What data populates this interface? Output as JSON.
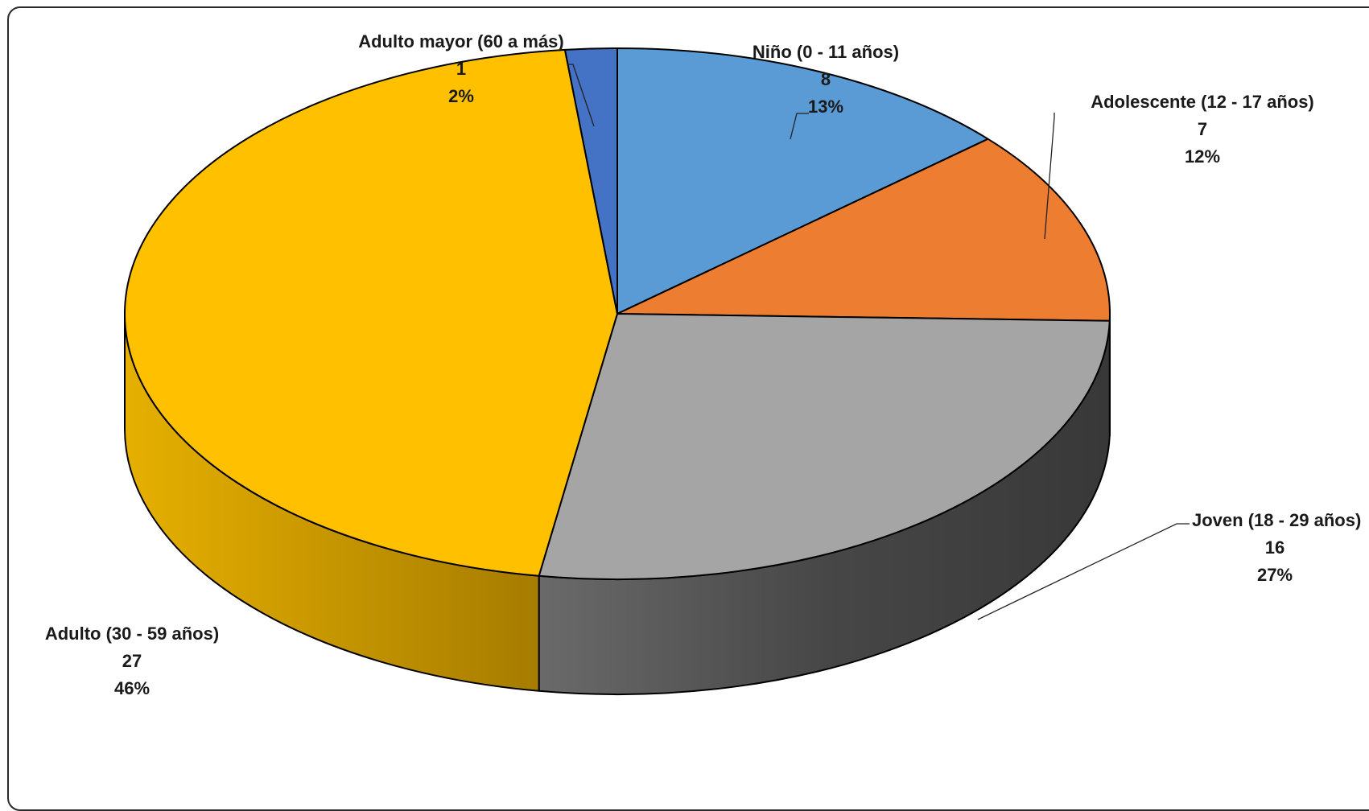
{
  "chart_data": {
    "type": "pie",
    "style": "3d",
    "title": "",
    "series": [
      {
        "name": "Niño (0 - 11 años)",
        "value": 8,
        "percent": "13%",
        "color": "#5B9BD5",
        "side_dark": "#3a6a9a"
      },
      {
        "name": "Adolescente (12 - 17 años)",
        "value": 7,
        "percent": "12%",
        "color": "#ED7D31",
        "side_dark": "#a6521c"
      },
      {
        "name": "Joven (18 - 29 años)",
        "value": 16,
        "percent": "27%",
        "color": "#A5A5A5",
        "side_dark": "#3c3c3c"
      },
      {
        "name": "Adulto (30 - 59 años)",
        "value": 27,
        "percent": "46%",
        "color": "#FFC000",
        "side_dark": "#a67c00"
      },
      {
        "name": "Adulto mayor (60 a más)",
        "value": 1,
        "percent": "2%",
        "color": "#4472C4",
        "side_dark": "#2b4a82"
      }
    ],
    "legend": "none",
    "data_labels": "category, value, percent"
  },
  "labels": {
    "nino": {
      "name": "Niño (0 - 11 años)",
      "value": "8",
      "percent": "13%"
    },
    "adolescente": {
      "name": "Adolescente (12 - 17 años)",
      "value": "7",
      "percent": "12%"
    },
    "joven": {
      "name": "Joven (18 - 29 años)",
      "value": "16",
      "percent": "27%"
    },
    "adulto": {
      "name": "Adulto (30 - 59 años)",
      "value": "27",
      "percent": "46%"
    },
    "mayor": {
      "name": "Adulto mayor (60 a más)",
      "value": "1",
      "percent": "2%"
    }
  }
}
